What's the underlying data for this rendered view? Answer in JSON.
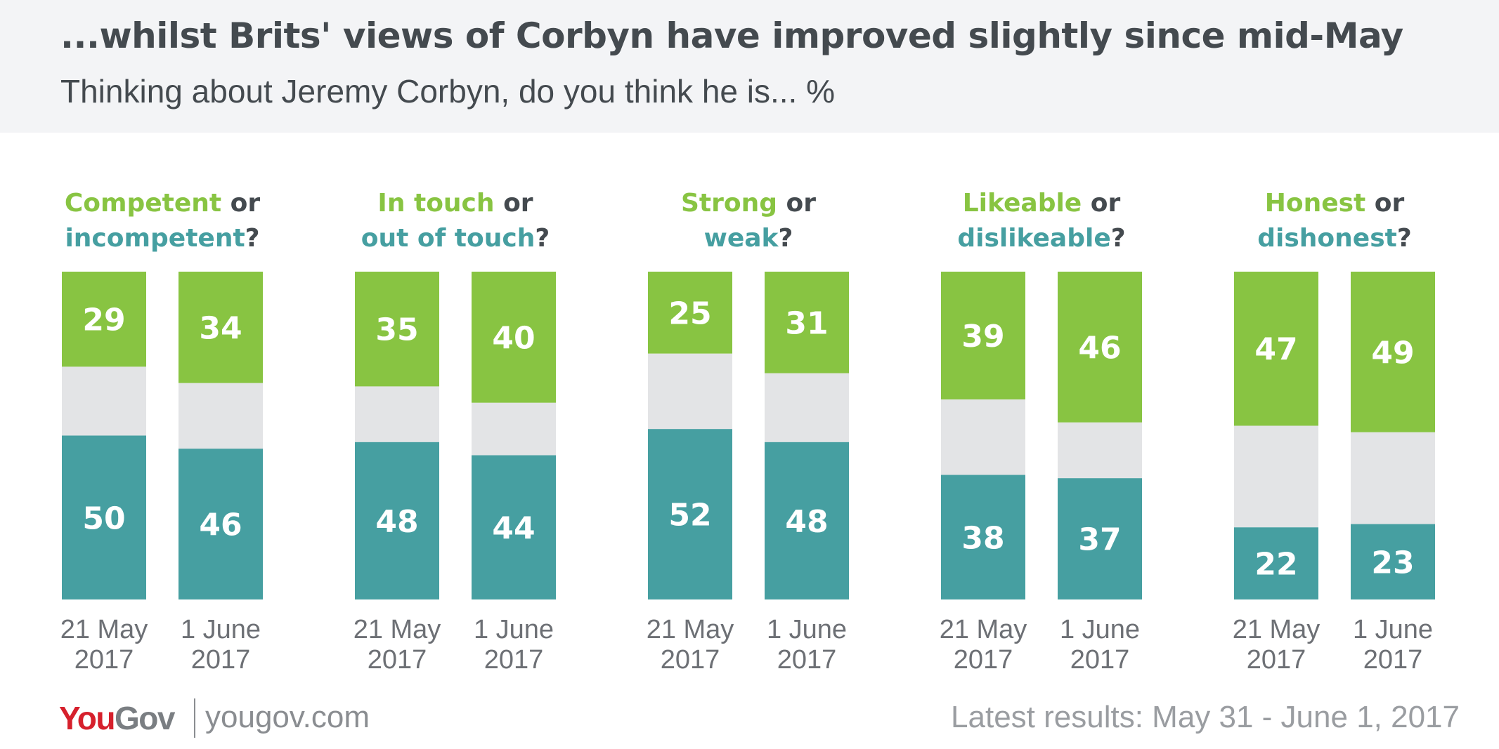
{
  "title": "...whilst Brits' views of Corbyn have improved slightly since mid-May",
  "subtitle": "Thinking about Jeremy Corbyn, do you think he is... %",
  "colors": {
    "positive": "#88c442",
    "negative": "#469fa1",
    "neutral": "#e3e4e6",
    "text": "#444a4f",
    "logo_you": "#d6202c",
    "logo_gov": "#7a7e82"
  },
  "chart_data": {
    "type": "bar",
    "stacked": true,
    "categories": [
      "21 May 2017",
      "1 June 2017"
    ],
    "groups": [
      {
        "positive_label": "Competent",
        "connector": "or",
        "negative_label": "incompetent",
        "suffix": "?",
        "bars": [
          {
            "date": "21 May",
            "year": "2017",
            "positive": 29,
            "negative": 50
          },
          {
            "date": "1 June",
            "year": "2017",
            "positive": 34,
            "negative": 46
          }
        ]
      },
      {
        "positive_label": "In touch",
        "connector": "or",
        "negative_label": "out of touch",
        "suffix": "?",
        "bars": [
          {
            "date": "21 May",
            "year": "2017",
            "positive": 35,
            "negative": 48
          },
          {
            "date": "1 June",
            "year": "2017",
            "positive": 40,
            "negative": 44
          }
        ]
      },
      {
        "positive_label": "Strong",
        "connector": "or",
        "negative_label": "weak",
        "suffix": "?",
        "bars": [
          {
            "date": "21 May",
            "year": "2017",
            "positive": 25,
            "negative": 52
          },
          {
            "date": "1 June",
            "year": "2017",
            "positive": 31,
            "negative": 48
          }
        ]
      },
      {
        "positive_label": "Likeable",
        "connector": "or",
        "negative_label": "dislikeable",
        "suffix": "?",
        "bars": [
          {
            "date": "21 May",
            "year": "2017",
            "positive": 39,
            "negative": 38
          },
          {
            "date": "1 June",
            "year": "2017",
            "positive": 46,
            "negative": 37
          }
        ]
      },
      {
        "positive_label": "Honest",
        "connector": "or",
        "negative_label": "dishonest",
        "suffix": "?",
        "bars": [
          {
            "date": "21 May",
            "year": "2017",
            "positive": 47,
            "negative": 22
          },
          {
            "date": "1 June",
            "year": "2017",
            "positive": 49,
            "negative": 23
          }
        ]
      }
    ],
    "ylim": [
      0,
      100
    ]
  },
  "footer": {
    "logo_you": "You",
    "logo_gov": "Gov",
    "url": "yougov.com",
    "latest": "Latest results: May 31 - June 1, 2017"
  }
}
